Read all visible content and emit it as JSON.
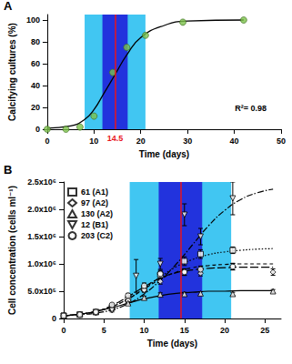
{
  "chart_data": [
    {
      "type": "scatter",
      "title": "A",
      "x_label": "Time (days)",
      "y_label": "Calcifying cultures (%)",
      "xlim": [
        0,
        50
      ],
      "xticks": [
        0,
        10,
        20,
        30,
        40,
        50
      ],
      "ylim": [
        0,
        105
      ],
      "yticks": [
        0,
        20,
        40,
        60,
        80,
        100
      ],
      "grid": false,
      "bands": [
        {
          "from": 8,
          "to": 21,
          "color": "#41c6f2"
        },
        {
          "from": 11.8,
          "to": 17.2,
          "color": "#2233dd"
        }
      ],
      "vline": {
        "x": 14.5,
        "color": "#e8141c",
        "label": "14.5"
      },
      "annotations": [
        "R²= 0.98"
      ],
      "series": [
        {
          "type": "scatter",
          "marker": "circle",
          "color": "#7cc24a",
          "x": [
            0,
            4,
            7,
            10,
            14,
            17,
            21,
            29,
            42
          ],
          "values": [
            0,
            0,
            2,
            12,
            52,
            75,
            86,
            98,
            100
          ]
        },
        {
          "type": "line",
          "line_style": "solid",
          "color": "#000000",
          "x": [
            0,
            5,
            8,
            10,
            12,
            14.5,
            17,
            20,
            25,
            30,
            42
          ],
          "values": [
            1,
            3,
            9,
            18,
            32,
            50,
            68,
            84,
            95,
            99,
            100
          ]
        }
      ]
    },
    {
      "type": "scatter",
      "title": "B",
      "x_label": "Time (days)",
      "y_label": "Cell concentration (cells ml⁻¹)",
      "xlim": [
        0,
        27
      ],
      "xticks": [
        0,
        5,
        10,
        15,
        20,
        25
      ],
      "ylim": [
        0,
        2500000
      ],
      "yticks": [
        0,
        {
          "value": 500000,
          "label": "5.0x10⁵"
        },
        {
          "value": 1000000,
          "label": "1.0x10⁶"
        },
        {
          "value": 1500000,
          "label": "1.5x10⁶"
        },
        {
          "value": 2000000,
          "label": "2.0x10⁶"
        },
        {
          "value": 2500000,
          "label": "2.5x10⁶"
        }
      ],
      "grid": false,
      "legend": "top-left",
      "bands": [
        {
          "from": 8.2,
          "to": 20.8,
          "color": "#41c6f2"
        },
        {
          "from": 11.8,
          "to": 17.2,
          "color": "#2233dd"
        }
      ],
      "vline": {
        "x": 14.5,
        "color": "#e8141c"
      },
      "series": [
        {
          "name": "61 (A1)",
          "type": "scatter",
          "marker": "square",
          "line_style": "dotted",
          "color": "#000000",
          "x": [
            0,
            2,
            4,
            6,
            8,
            10,
            12,
            15,
            17,
            21
          ],
          "values": [
            50000,
            70000,
            120000,
            200000,
            350000,
            550000,
            800000,
            1050000,
            1180000,
            1250000
          ],
          "errors": [
            10000,
            10000,
            20000,
            20000,
            40000,
            50000,
            60000,
            80000,
            80000,
            60000
          ],
          "fit_x": [
            0,
            2,
            4,
            6,
            8,
            10,
            12,
            14,
            16,
            18,
            20,
            22,
            24,
            26
          ],
          "fit_values": [
            50000,
            80000,
            130000,
            220000,
            360000,
            550000,
            760000,
            950000,
            1080000,
            1170000,
            1220000,
            1250000,
            1270000,
            1280000
          ]
        },
        {
          "name": "97 (A2)",
          "type": "scatter",
          "marker": "diamond",
          "line_style": "dashed",
          "color": "#000000",
          "x": [
            0,
            2,
            4,
            6,
            8,
            10,
            12,
            15,
            17,
            21,
            26
          ],
          "values": [
            50000,
            70000,
            120000,
            200000,
            330000,
            520000,
            680000,
            850000,
            830000,
            950000,
            850000
          ],
          "errors": [
            10000,
            10000,
            20000,
            20000,
            30000,
            40000,
            50000,
            60000,
            50000,
            60000,
            60000
          ],
          "fit_x": [
            0,
            2,
            4,
            6,
            8,
            10,
            12,
            14,
            16,
            18,
            20,
            22,
            24,
            26
          ],
          "fit_values": [
            50000,
            80000,
            130000,
            220000,
            360000,
            540000,
            720000,
            850000,
            930000,
            970000,
            990000,
            1000000,
            1000000,
            1000000
          ]
        },
        {
          "name": "130 (A2)",
          "type": "scatter",
          "marker": "triangle",
          "line_style": "solid",
          "color": "#000000",
          "x": [
            0,
            2,
            4,
            6,
            8,
            10,
            12,
            15,
            17,
            21,
            26
          ],
          "values": [
            50000,
            80000,
            120000,
            200000,
            280000,
            380000,
            440000,
            450000,
            460000,
            450000,
            500000
          ],
          "errors": [
            10000,
            10000,
            10000,
            20000,
            20000,
            30000,
            30000,
            30000,
            30000,
            30000,
            30000
          ],
          "fit_x": [
            0,
            2,
            4,
            6,
            8,
            10,
            12,
            14,
            16,
            18,
            20,
            22,
            24,
            26
          ],
          "fit_values": [
            50000,
            80000,
            130000,
            200000,
            280000,
            360000,
            420000,
            460000,
            480000,
            500000,
            500000,
            510000,
            510000,
            510000
          ]
        },
        {
          "name": "12 (B1)",
          "type": "scatter",
          "marker": "triangle_down",
          "line_style": "dashdot",
          "color": "#000000",
          "x": [
            0,
            2,
            4,
            6,
            9,
            12,
            15,
            17,
            21
          ],
          "values": [
            50000,
            70000,
            100000,
            150000,
            780000,
            1000000,
            1900000,
            1500000,
            2200000
          ],
          "errors": [
            10000,
            10000,
            20000,
            30000,
            300000,
            100000,
            200000,
            150000,
            300000
          ],
          "fit_x": [
            0,
            2,
            4,
            6,
            8,
            10,
            12,
            14,
            16,
            18,
            20,
            22,
            24,
            26
          ],
          "fit_values": [
            50000,
            70000,
            100000,
            160000,
            270000,
            450000,
            700000,
            1000000,
            1350000,
            1700000,
            1980000,
            2180000,
            2300000,
            2370000
          ]
        },
        {
          "name": "203 (C2)",
          "type": "scatter",
          "marker": "circle",
          "line_style": "longdash",
          "color": "#000000",
          "x": [
            0,
            2,
            4,
            6,
            8,
            10,
            12,
            15,
            17,
            21
          ],
          "values": [
            50000,
            70000,
            120000,
            250000,
            420000,
            600000,
            820000,
            850000,
            900000,
            950000
          ],
          "errors": [
            10000,
            10000,
            20000,
            30000,
            40000,
            50000,
            60000,
            60000,
            60000,
            60000
          ],
          "fit_x": [
            0,
            2,
            4,
            6,
            8,
            10,
            12,
            14,
            16,
            18,
            20,
            22,
            24,
            26
          ],
          "fit_values": [
            50000,
            80000,
            130000,
            240000,
            400000,
            580000,
            740000,
            840000,
            890000,
            920000,
            930000,
            940000,
            940000,
            940000
          ]
        }
      ]
    }
  ]
}
